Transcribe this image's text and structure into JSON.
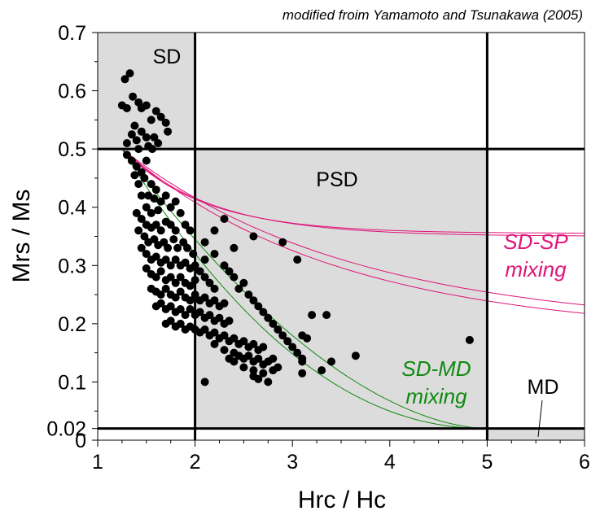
{
  "chart_data": {
    "type": "scatter",
    "title": "modified froim Yamamoto and Tsunakawa (2005)",
    "xlabel": "Hrc / Hc",
    "ylabel": "Mrs / Ms",
    "xlim": [
      1,
      6
    ],
    "ylim": [
      0,
      0.7
    ],
    "x_ticks": [
      1,
      2,
      3,
      4,
      5,
      6
    ],
    "x_tick_labels": [
      "1",
      "2",
      "3",
      "4",
      "5",
      "6"
    ],
    "y_ticks": [
      0,
      0.02,
      0.1,
      0.2,
      0.3,
      0.4,
      0.5,
      0.6,
      0.7
    ],
    "y_tick_labels": [
      "0",
      "0.02",
      "0.1",
      "0.2",
      "0.3",
      "0.4",
      "0.5",
      "0.6",
      "0.7"
    ],
    "grid": false,
    "regions": [
      {
        "name": "SD",
        "label": "SD",
        "x": [
          1,
          2
        ],
        "y": [
          0.5,
          0.7
        ],
        "fill": "#dcdcdc"
      },
      {
        "name": "PSD",
        "label": "PSD",
        "x": [
          2,
          5
        ],
        "y": [
          0.02,
          0.5
        ],
        "fill": "#dcdcdc"
      },
      {
        "name": "MD",
        "label": "MD",
        "x": [
          5,
          6
        ],
        "y": [
          0,
          0.02
        ],
        "fill": "#dcdcdc"
      }
    ],
    "boundaries": {
      "x": [
        2,
        5
      ],
      "y": [
        0.5,
        0.02
      ]
    },
    "mixing_labels": [
      {
        "name": "sd-sp",
        "lines": [
          "SD-SP",
          "mixing"
        ],
        "color": "#e0147a"
      },
      {
        "name": "sd-md",
        "lines": [
          "SD-MD",
          "mixing"
        ],
        "color": "#0f8a0f"
      }
    ],
    "series": [
      {
        "name": "specimens",
        "color": "#000000",
        "points": [
          [
            1.28,
            0.62
          ],
          [
            1.33,
            0.63
          ],
          [
            1.36,
            0.59
          ],
          [
            1.25,
            0.575
          ],
          [
            1.3,
            0.57
          ],
          [
            1.42,
            0.58
          ],
          [
            1.45,
            0.57
          ],
          [
            1.5,
            0.575
          ],
          [
            1.55,
            0.55
          ],
          [
            1.6,
            0.565
          ],
          [
            1.65,
            0.555
          ],
          [
            1.7,
            0.545
          ],
          [
            1.72,
            0.53
          ],
          [
            1.38,
            0.54
          ],
          [
            1.45,
            0.53
          ],
          [
            1.5,
            0.52
          ],
          [
            1.58,
            0.52
          ],
          [
            1.62,
            0.51
          ],
          [
            1.35,
            0.525
          ],
          [
            1.4,
            0.515
          ],
          [
            1.3,
            0.51
          ],
          [
            1.52,
            0.505
          ],
          [
            1.56,
            0.5
          ],
          [
            1.42,
            0.5
          ],
          [
            1.3,
            0.49
          ],
          [
            1.35,
            0.48
          ],
          [
            1.4,
            0.47
          ],
          [
            1.45,
            0.46
          ],
          [
            1.5,
            0.48
          ],
          [
            1.38,
            0.455
          ],
          [
            1.42,
            0.44
          ],
          [
            1.48,
            0.45
          ],
          [
            1.55,
            0.44
          ],
          [
            1.6,
            0.43
          ],
          [
            1.52,
            0.42
          ],
          [
            1.58,
            0.415
          ],
          [
            1.45,
            0.42
          ],
          [
            1.5,
            0.4
          ],
          [
            1.55,
            0.39
          ],
          [
            1.62,
            0.395
          ],
          [
            1.65,
            0.41
          ],
          [
            1.7,
            0.42
          ],
          [
            1.75,
            0.4
          ],
          [
            1.8,
            0.41
          ],
          [
            1.85,
            0.39
          ],
          [
            1.4,
            0.39
          ],
          [
            1.45,
            0.38
          ],
          [
            1.5,
            0.37
          ],
          [
            1.55,
            0.365
          ],
          [
            1.6,
            0.37
          ],
          [
            1.65,
            0.36
          ],
          [
            1.7,
            0.375
          ],
          [
            1.75,
            0.37
          ],
          [
            1.8,
            0.36
          ],
          [
            1.9,
            0.37
          ],
          [
            1.95,
            0.36
          ],
          [
            1.42,
            0.36
          ],
          [
            1.48,
            0.35
          ],
          [
            1.52,
            0.34
          ],
          [
            1.58,
            0.345
          ],
          [
            1.62,
            0.335
          ],
          [
            1.68,
            0.34
          ],
          [
            1.72,
            0.33
          ],
          [
            1.78,
            0.345
          ],
          [
            1.82,
            0.33
          ],
          [
            1.88,
            0.34
          ],
          [
            1.92,
            0.33
          ],
          [
            1.98,
            0.32
          ],
          [
            1.45,
            0.33
          ],
          [
            1.5,
            0.32
          ],
          [
            1.55,
            0.31
          ],
          [
            1.6,
            0.315
          ],
          [
            1.65,
            0.305
          ],
          [
            1.7,
            0.31
          ],
          [
            1.75,
            0.3
          ],
          [
            1.8,
            0.31
          ],
          [
            1.85,
            0.3
          ],
          [
            1.9,
            0.305
          ],
          [
            1.95,
            0.295
          ],
          [
            2.0,
            0.3
          ],
          [
            2.05,
            0.29
          ],
          [
            1.5,
            0.295
          ],
          [
            1.55,
            0.285
          ],
          [
            1.6,
            0.28
          ],
          [
            1.65,
            0.29
          ],
          [
            1.7,
            0.275
          ],
          [
            1.75,
            0.28
          ],
          [
            1.8,
            0.27
          ],
          [
            1.85,
            0.28
          ],
          [
            1.9,
            0.27
          ],
          [
            1.95,
            0.265
          ],
          [
            2.0,
            0.275
          ],
          [
            2.1,
            0.28
          ],
          [
            2.15,
            0.27
          ],
          [
            2.2,
            0.26
          ],
          [
            1.55,
            0.26
          ],
          [
            1.6,
            0.255
          ],
          [
            1.65,
            0.25
          ],
          [
            1.7,
            0.26
          ],
          [
            1.75,
            0.25
          ],
          [
            1.8,
            0.245
          ],
          [
            1.85,
            0.255
          ],
          [
            1.9,
            0.245
          ],
          [
            1.95,
            0.24
          ],
          [
            2.0,
            0.25
          ],
          [
            2.05,
            0.24
          ],
          [
            2.1,
            0.245
          ],
          [
            2.15,
            0.235
          ],
          [
            2.2,
            0.24
          ],
          [
            2.25,
            0.23
          ],
          [
            2.3,
            0.235
          ],
          [
            1.6,
            0.23
          ],
          [
            1.65,
            0.235
          ],
          [
            1.7,
            0.225
          ],
          [
            1.75,
            0.23
          ],
          [
            1.8,
            0.22
          ],
          [
            1.85,
            0.225
          ],
          [
            1.9,
            0.215
          ],
          [
            1.95,
            0.225
          ],
          [
            2.0,
            0.215
          ],
          [
            2.05,
            0.22
          ],
          [
            2.1,
            0.21
          ],
          [
            2.15,
            0.215
          ],
          [
            2.2,
            0.205
          ],
          [
            2.25,
            0.21
          ],
          [
            2.3,
            0.2
          ],
          [
            2.35,
            0.205
          ],
          [
            1.7,
            0.2
          ],
          [
            1.75,
            0.205
          ],
          [
            1.8,
            0.195
          ],
          [
            1.85,
            0.2
          ],
          [
            1.9,
            0.19
          ],
          [
            1.95,
            0.195
          ],
          [
            2.0,
            0.19
          ],
          [
            2.05,
            0.185
          ],
          [
            2.1,
            0.19
          ],
          [
            2.15,
            0.18
          ],
          [
            2.2,
            0.185
          ],
          [
            2.25,
            0.175
          ],
          [
            2.3,
            0.18
          ],
          [
            2.35,
            0.17
          ],
          [
            2.4,
            0.175
          ],
          [
            2.45,
            0.165
          ],
          [
            2.5,
            0.17
          ],
          [
            2.55,
            0.16
          ],
          [
            2.6,
            0.165
          ],
          [
            2.65,
            0.155
          ],
          [
            2.7,
            0.16
          ],
          [
            2.2,
            0.165
          ],
          [
            2.3,
            0.155
          ],
          [
            2.4,
            0.15
          ],
          [
            2.45,
            0.145
          ],
          [
            2.5,
            0.14
          ],
          [
            2.55,
            0.145
          ],
          [
            2.6,
            0.135
          ],
          [
            2.65,
            0.14
          ],
          [
            2.7,
            0.13
          ],
          [
            2.75,
            0.135
          ],
          [
            2.8,
            0.14
          ],
          [
            2.35,
            0.14
          ],
          [
            2.4,
            0.135
          ],
          [
            2.5,
            0.125
          ],
          [
            2.6,
            0.12
          ],
          [
            2.7,
            0.115
          ],
          [
            2.8,
            0.12
          ],
          [
            2.65,
            0.105
          ],
          [
            2.75,
            0.1
          ],
          [
            2.1,
            0.31
          ],
          [
            2.2,
            0.32
          ],
          [
            2.3,
            0.3
          ],
          [
            2.35,
            0.29
          ],
          [
            2.4,
            0.28
          ],
          [
            2.5,
            0.27
          ],
          [
            2.45,
            0.26
          ],
          [
            2.55,
            0.25
          ],
          [
            2.6,
            0.24
          ],
          [
            2.65,
            0.23
          ],
          [
            2.7,
            0.22
          ],
          [
            2.75,
            0.21
          ],
          [
            2.8,
            0.2
          ],
          [
            2.85,
            0.19
          ],
          [
            2.9,
            0.18
          ],
          [
            2.95,
            0.17
          ],
          [
            3.0,
            0.16
          ],
          [
            3.05,
            0.15
          ],
          [
            2.3,
            0.38
          ],
          [
            2.6,
            0.35
          ],
          [
            2.9,
            0.34
          ],
          [
            3.05,
            0.31
          ],
          [
            2.2,
            0.36
          ],
          [
            2.4,
            0.33
          ],
          [
            2.1,
            0.34
          ],
          [
            3.1,
            0.18
          ],
          [
            3.15,
            0.175
          ],
          [
            3.2,
            0.215
          ],
          [
            3.35,
            0.215
          ],
          [
            3.1,
            0.14
          ],
          [
            3.1,
            0.135
          ],
          [
            3.4,
            0.135
          ],
          [
            3.3,
            0.12
          ],
          [
            3.65,
            0.145
          ],
          [
            3.1,
            0.115
          ],
          [
            2.85,
            0.125
          ],
          [
            2.6,
            0.11
          ],
          [
            2.1,
            0.1
          ],
          [
            4.82,
            0.172
          ]
        ]
      }
    ]
  }
}
